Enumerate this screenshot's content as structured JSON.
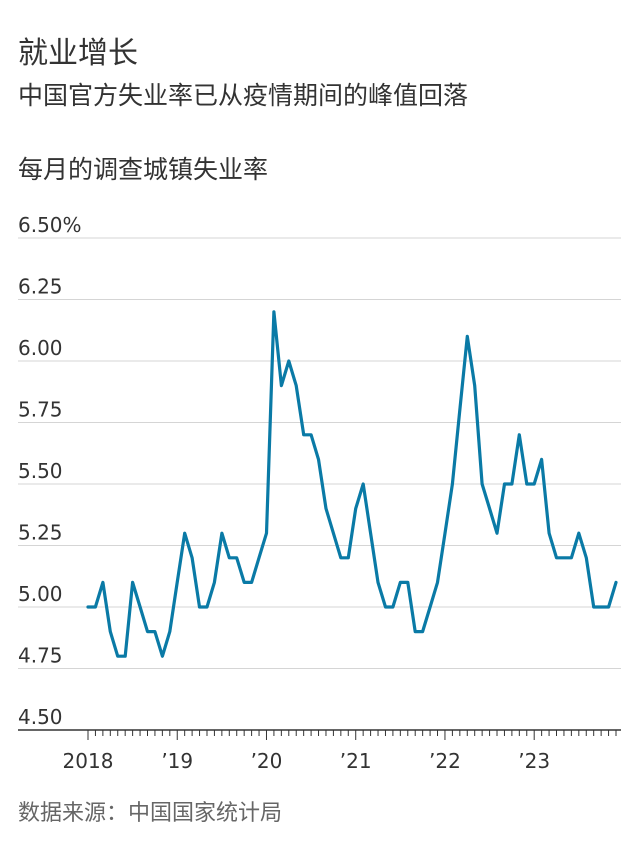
{
  "header": {
    "title": "就业增长",
    "subtitle": "中国官方失业率已从疫情期间的峰值回落"
  },
  "chart_label": "每月的调查城镇失业率",
  "source": "数据来源：中国国家统计局",
  "colors": {
    "line": "#0a7aa6",
    "grid": "#d5d5d5",
    "axis": "#333333"
  },
  "chart_data": {
    "type": "line",
    "title": "每月的调查城镇失业率",
    "xlabel": "",
    "ylabel": "",
    "ylim": [
      4.5,
      6.5
    ],
    "yticks": [
      4.5,
      4.75,
      5.0,
      5.25,
      5.5,
      5.75,
      6.0,
      6.25,
      6.5
    ],
    "ytick_labels": [
      "4.50",
      "4.75",
      "5.00",
      "5.25",
      "5.50",
      "5.75",
      "6.00",
      "6.25",
      "6.50%"
    ],
    "xticks": [
      "2018",
      "’19",
      "’20",
      "’21",
      "’22",
      "’23"
    ],
    "grid": true,
    "series": [
      {
        "x_start": "2018-01",
        "values": [
          5.0,
          5.0,
          5.1,
          4.9,
          4.8,
          4.8,
          5.1,
          5.0,
          4.9,
          4.9,
          4.8,
          4.9,
          5.1,
          5.3,
          5.2,
          5.0,
          5.0,
          5.1,
          5.3,
          5.2,
          5.2,
          5.1,
          5.1,
          5.2,
          5.3,
          6.2,
          5.9,
          6.0,
          5.9,
          5.7,
          5.7,
          5.6,
          5.4,
          5.3,
          5.2,
          5.2,
          5.4,
          5.5,
          5.3,
          5.1,
          5.0,
          5.0,
          5.1,
          5.1,
          4.9,
          4.9,
          5.0,
          5.1,
          5.3,
          5.5,
          5.8,
          6.1,
          5.9,
          5.5,
          5.4,
          5.3,
          5.5,
          5.5,
          5.7,
          5.5,
          5.5,
          5.6,
          5.3,
          5.2,
          5.2,
          5.2,
          5.3,
          5.2,
          5.0,
          5.0,
          5.0,
          5.1
        ]
      }
    ]
  }
}
